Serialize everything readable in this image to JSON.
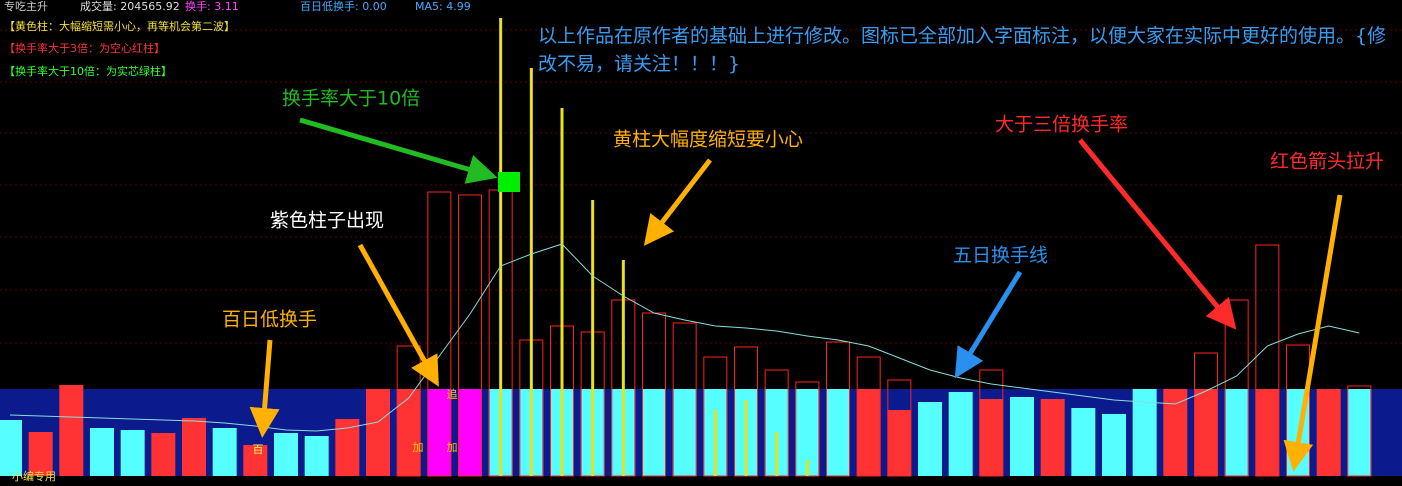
{
  "header": {
    "title": "专吃主升",
    "items": [
      "成交量: 204565.92",
      "换手: 3.11",
      "百日低换手: 0.00",
      "MA5: 4.99"
    ]
  },
  "legend_notes": [
    "【黄色柱：大幅缩短需小心，再等机会第二波】",
    "【换手率大于3倍：为空心红柱】",
    "【换手率大于10倍：为实芯绿柱】"
  ],
  "annotations": {
    "intro": "以上作品在原作者的基础上进行修改。图标已全部加入字面标注，以便大家在实际中更好的使用。{修改不易，请关注！！！}",
    "ten_times": "换手率大于10倍",
    "yellow_short": "黄柱大幅度缩短要小心",
    "three_times": "大于三倍换手率",
    "red_arrow": "红色箭头拉升",
    "ma5_line": "五日换手线",
    "purple": "紫色柱子出现",
    "low_100": "百日低换手"
  },
  "bar_marks": [
    "百",
    "加",
    "加",
    "追"
  ],
  "footer": "小编专用",
  "chart_data": {
    "type": "bar",
    "ylim": [
      0,
      460
    ],
    "categories": [
      null,
      null,
      null,
      null,
      null,
      null,
      null,
      null,
      null,
      null,
      null,
      null,
      null,
      null,
      null,
      null,
      null,
      null,
      null,
      null,
      null,
      null,
      null,
      null,
      null,
      null,
      null,
      null,
      null,
      null,
      null,
      null,
      null,
      null,
      null,
      null,
      null,
      null,
      null,
      null,
      null,
      null,
      null,
      null,
      null
    ],
    "low_bars": {
      "values": [
        56,
        44,
        91,
        48,
        46,
        43,
        58,
        48,
        31,
        43,
        40,
        57,
        87,
        87,
        87,
        87,
        87,
        87,
        87,
        87,
        87,
        87,
        87,
        87,
        87,
        87,
        87,
        87,
        87,
        66,
        74,
        84,
        77,
        79,
        77,
        68,
        62,
        87,
        87,
        87,
        87,
        87,
        87,
        87,
        87
      ],
      "colors": [
        "#55ffff",
        "#ff3333",
        "#ff3333",
        "#55ffff",
        "#55ffff",
        "#ff3333",
        "#ff3333",
        "#55ffff",
        "#ff3333",
        "#55ffff",
        "#55ffff",
        "#ff3333",
        "#ff3333",
        "#ff3333",
        "#ff00ff",
        "#ff00ff",
        "#55ffff",
        "#55ffff",
        "#55ffff",
        "#55ffff",
        "#55ffff",
        "#55ffff",
        "#55ffff",
        "#55ffff",
        "#55ffff",
        "#55ffff",
        "#55ffff",
        "#55ffff",
        "#ff3333",
        "#ff3333",
        "#55ffff",
        "#55ffff",
        "#ff3333",
        "#55ffff",
        "#ff3333",
        "#55ffff",
        "#55ffff",
        "#55ffff",
        "#ff3333",
        "#ff3333",
        "#55ffff",
        "#ff3333",
        "#55ffff",
        "#ff3333",
        "#55ffff"
      ]
    },
    "hollow_bars": {
      "color": "#ff2222",
      "values": [
        null,
        null,
        null,
        null,
        null,
        null,
        null,
        null,
        null,
        null,
        null,
        null,
        null,
        130,
        284,
        281,
        286,
        136,
        150,
        144,
        176,
        163,
        153,
        119,
        129,
        106,
        94,
        134,
        119,
        96,
        null,
        null,
        106,
        null,
        null,
        null,
        null,
        null,
        null,
        123,
        176,
        231,
        131,
        null,
        90
      ]
    },
    "yellow_bars": {
      "color": "#e8e020",
      "values": [
        null,
        null,
        null,
        null,
        null,
        null,
        null,
        null,
        null,
        null,
        null,
        null,
        null,
        null,
        null,
        null,
        458,
        408,
        368,
        276,
        216,
        null,
        null,
        66,
        76,
        44,
        16,
        null,
        null,
        null,
        null,
        null,
        null,
        null,
        null,
        null,
        null,
        null,
        null,
        null,
        null,
        null,
        null,
        null,
        null
      ]
    },
    "ma5": {
      "color": "#88dddd",
      "values": [
        61,
        60,
        59,
        58,
        57,
        56,
        55,
        53,
        50,
        46,
        45,
        48,
        54,
        78,
        120,
        162,
        210,
        222,
        232,
        200,
        180,
        163,
        156,
        150,
        148,
        145,
        140,
        136,
        130,
        118,
        106,
        98,
        92,
        88,
        84,
        80,
        76,
        74,
        72,
        85,
        100,
        130,
        142,
        150,
        143
      ]
    }
  }
}
